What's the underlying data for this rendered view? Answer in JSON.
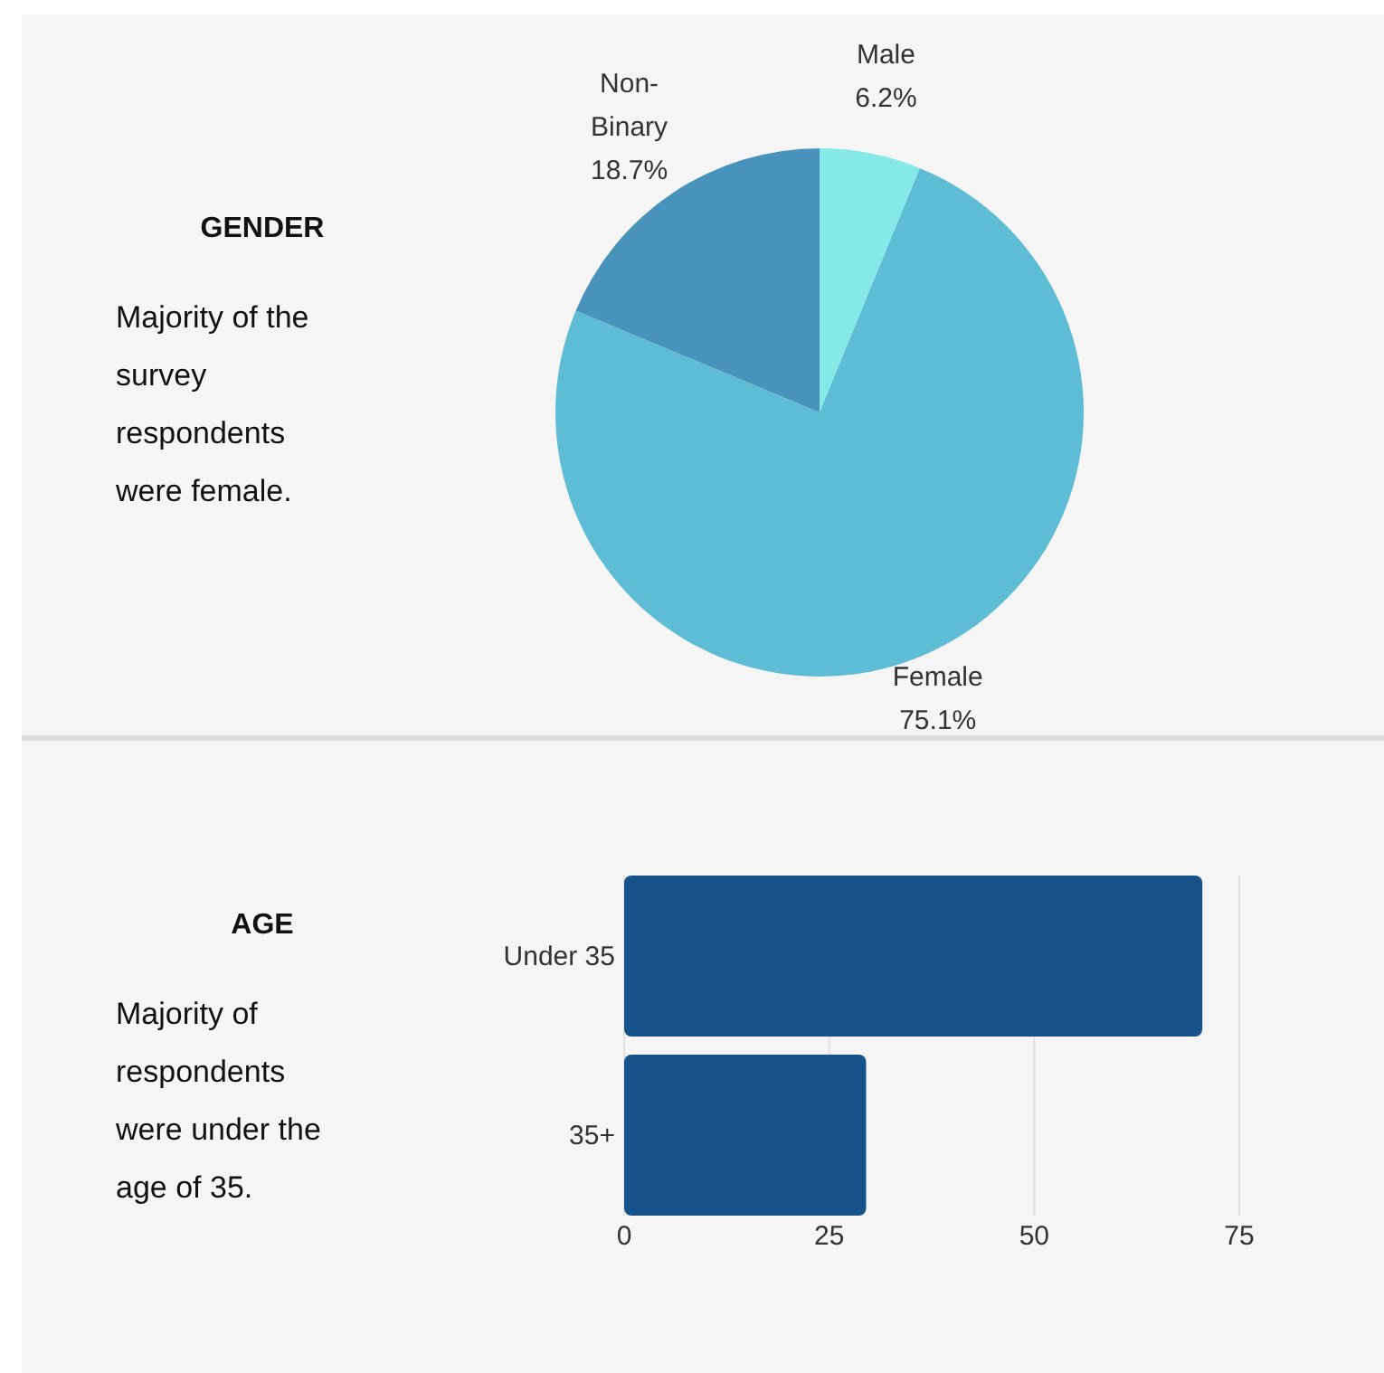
{
  "chart_data": [
    {
      "type": "other",
      "title": "GENDER",
      "annotations": [
        "Majority of the survey respondents were female."
      ]
    },
    {
      "type": "pie",
      "categories": [
        "Male",
        "Female",
        "Non-Binary"
      ],
      "values": [
        6.2,
        75.1,
        18.7
      ],
      "value_labels": [
        "6.2%",
        "75.1%",
        "18.7%"
      ],
      "colors": [
        "#87e8e8",
        "#5fbcd5",
        "#4893bb"
      ]
    },
    {
      "type": "other",
      "title": "AGE",
      "annotations": [
        "Majority of respondents were under the age of 35."
      ]
    },
    {
      "type": "bar",
      "orientation": "horizontal",
      "categories": [
        "Under 35",
        "35+"
      ],
      "values": [
        70.5,
        29.5
      ],
      "color": "#15538a",
      "xlim": [
        0,
        75
      ],
      "xticks": [
        0,
        25,
        50,
        75
      ],
      "grid": "x"
    }
  ]
}
